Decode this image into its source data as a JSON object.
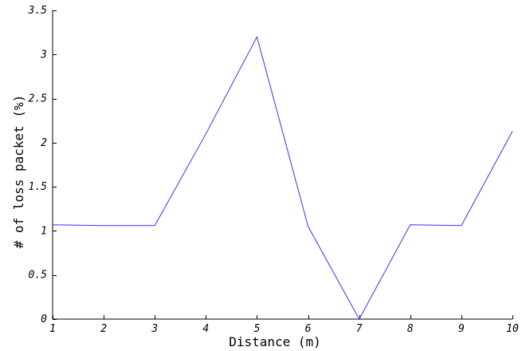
{
  "chart_data": {
    "type": "line",
    "title": "",
    "xlabel": "Distance (m)",
    "ylabel": "# of loss packet (%)",
    "xlim": [
      1,
      10
    ],
    "ylim": [
      0,
      3.5
    ],
    "x_ticks": [
      "1",
      "2",
      "3",
      "4",
      "5",
      "6",
      "7",
      "8",
      "9",
      "10"
    ],
    "y_ticks": [
      "0",
      "0.5",
      "1",
      "1.5",
      "2",
      "2.5",
      "3",
      "3.5"
    ],
    "grid": false,
    "legend": "none",
    "series": [
      {
        "color": "#3333ff",
        "x": [
          1,
          2,
          3,
          4,
          5,
          6,
          7,
          8,
          9,
          10
        ],
        "y": [
          1.07,
          1.06,
          1.06,
          2.1,
          3.2,
          1.05,
          0,
          1.07,
          1.06,
          2.13
        ]
      }
    ]
  }
}
